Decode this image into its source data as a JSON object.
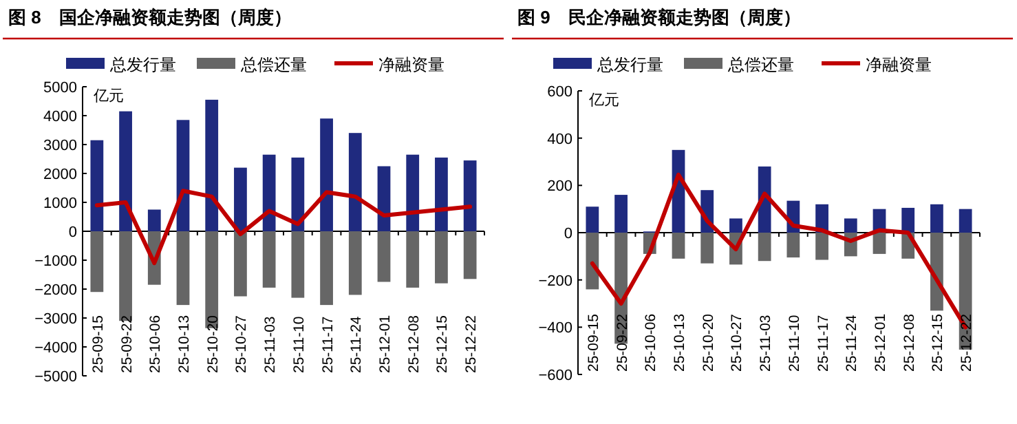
{
  "chart_data": [
    {
      "type": "bar",
      "title": "图 8　国企净融资额走势图（周度）",
      "ylabel": "亿元",
      "categories": [
        "25-09-15",
        "25-09-22",
        "25-10-06",
        "25-10-13",
        "25-10-20",
        "25-10-27",
        "25-11-03",
        "25-11-10",
        "25-11-17",
        "25-11-24",
        "25-12-01",
        "25-12-08",
        "25-12-15",
        "25-12-22"
      ],
      "series": [
        {
          "name": "总发行量",
          "color": "#1f2a7f",
          "values": [
            3150,
            4150,
            750,
            3850,
            4550,
            2200,
            2650,
            2550,
            3900,
            3400,
            2250,
            2650,
            2550,
            2450
          ]
        },
        {
          "name": "总偿还量",
          "color": "#666666",
          "values": [
            -2100,
            -3100,
            -1850,
            -2550,
            -3350,
            -2250,
            -1950,
            -2300,
            -2550,
            -2200,
            -1750,
            -1950,
            -1800,
            -1650
          ]
        },
        {
          "name": "净融资量",
          "type": "line",
          "color": "#c00000",
          "values": [
            900,
            1000,
            -1100,
            1400,
            1200,
            -100,
            700,
            250,
            1350,
            1200,
            550,
            650,
            750,
            850
          ]
        }
      ],
      "ylim": [
        -5000,
        5000
      ],
      "yticks": [
        -5000,
        -4000,
        -3000,
        -2000,
        -1000,
        0,
        1000,
        2000,
        3000,
        4000,
        5000
      ],
      "stacked": true,
      "legend": "top"
    },
    {
      "type": "bar",
      "title": "图 9　民企净融资额走势图（周度）",
      "ylabel": "亿元",
      "categories": [
        "25-09-15",
        "25-09-22",
        "25-10-06",
        "25-10-13",
        "25-10-20",
        "25-10-27",
        "25-11-03",
        "25-11-10",
        "25-11-17",
        "25-11-24",
        "25-12-01",
        "25-12-08",
        "25-12-15",
        "25-12-22"
      ],
      "series": [
        {
          "name": "总发行量",
          "color": "#1f2a7f",
          "values": [
            110,
            160,
            5,
            350,
            180,
            60,
            280,
            135,
            120,
            60,
            100,
            105,
            120,
            100
          ]
        },
        {
          "name": "总偿还量",
          "color": "#666666",
          "values": [
            -240,
            -470,
            -90,
            -110,
            -130,
            -135,
            -120,
            -105,
            -115,
            -100,
            -90,
            -110,
            -330,
            -495
          ]
        },
        {
          "name": "净融资量",
          "type": "line",
          "color": "#c00000",
          "values": [
            -130,
            -300,
            -85,
            245,
            50,
            -70,
            165,
            30,
            10,
            -35,
            10,
            0,
            -200,
            -400
          ]
        }
      ],
      "ylim": [
        -600,
        600
      ],
      "yticks": [
        -600,
        -400,
        -200,
        0,
        200,
        400,
        600
      ],
      "stacked": true,
      "legend": "top"
    }
  ]
}
